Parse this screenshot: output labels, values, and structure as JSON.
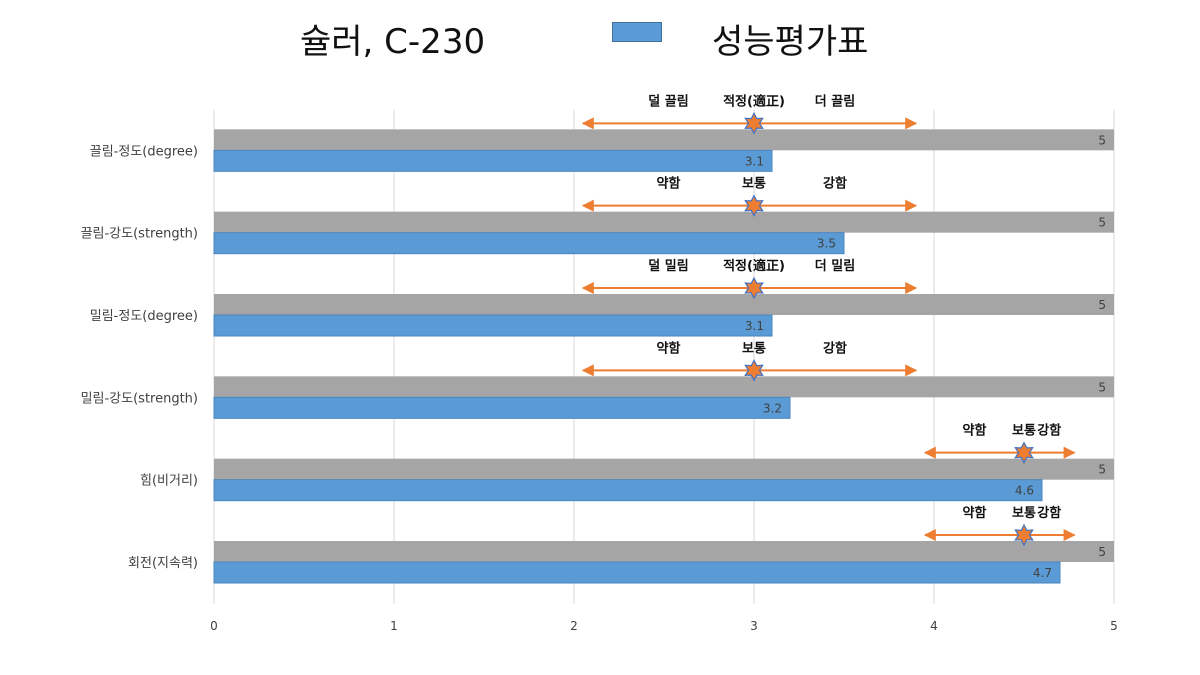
{
  "chart_data": {
    "type": "bar",
    "title": "슐러, C-230",
    "categories": [
      "끌림-정도(degree)",
      "끌림-강도(strength)",
      "밀림-정도(degree)",
      "밀림-강도(strength)",
      "힘(비거리)",
      "회전(지속력)"
    ],
    "series": [
      {
        "name": "",
        "color": "#a5a5a5",
        "values": [
          5,
          5,
          5,
          5,
          5,
          5
        ]
      },
      {
        "name": "성능평가표",
        "color": "#5b9bd5",
        "values": [
          3.1,
          3.5,
          3.1,
          3.2,
          4.6,
          4.7
        ]
      }
    ],
    "xlim": [
      0,
      5
    ],
    "xticks": [
      0,
      1,
      2,
      3,
      4,
      5
    ],
    "grid": true,
    "legend": "top",
    "annotations": [
      {
        "left": "덜 끌림",
        "mid": "적정(適正)",
        "right": "더 끌림",
        "from": 2.05,
        "to": 3.9,
        "marker": 3.0
      },
      {
        "left": "약함",
        "mid": "보통",
        "right": "강함",
        "from": 2.05,
        "to": 3.9,
        "marker": 3.0
      },
      {
        "left": "덜 밀림",
        "mid": "적정(適正)",
        "right": "더 밀림",
        "from": 2.05,
        "to": 3.9,
        "marker": 3.0
      },
      {
        "left": "약함",
        "mid": "보통",
        "right": "강함",
        "from": 2.05,
        "to": 3.9,
        "marker": 3.0
      },
      {
        "left": "약함",
        "mid": "보통",
        "right": "강함",
        "from": 3.95,
        "to": 4.78,
        "marker": 4.5
      },
      {
        "left": "약함",
        "mid": "보통",
        "right": "강함",
        "from": 3.95,
        "to": 4.78,
        "marker": 4.5
      }
    ]
  }
}
